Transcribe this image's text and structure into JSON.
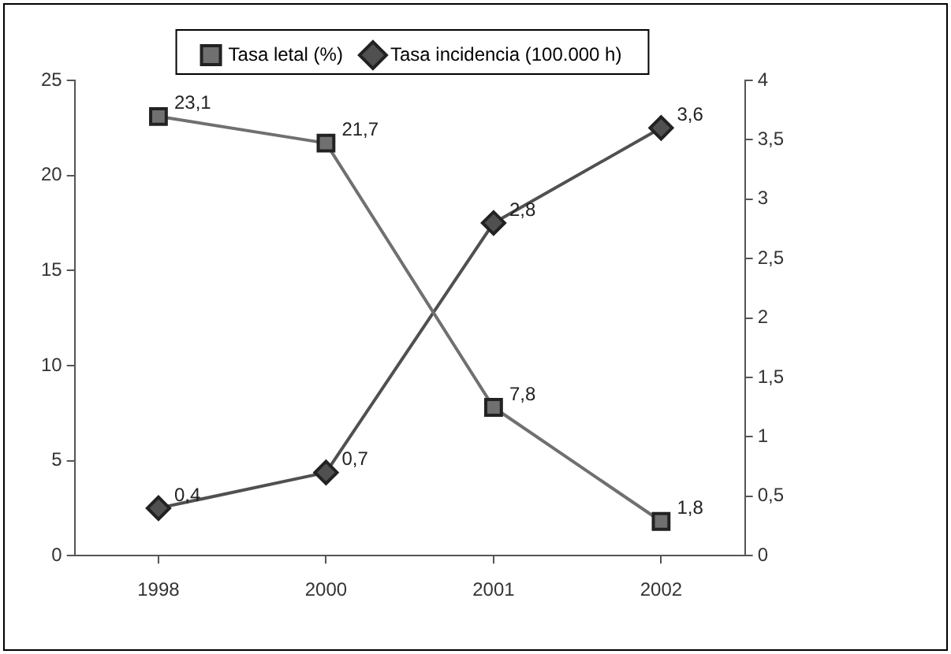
{
  "chart_data": {
    "type": "line",
    "categories": [
      "1998",
      "2000",
      "2001",
      "2002"
    ],
    "series": [
      {
        "name": "Tasa letal (%)",
        "color": "#707070",
        "marker": "square",
        "values": [
          23.1,
          21.7,
          7.8,
          1.8
        ],
        "value_labels": [
          "23,1",
          "21,7",
          "7,8",
          "1,8"
        ]
      },
      {
        "name": "Tasa incidencia (100.000 h)",
        "color": "#505050",
        "marker": "diamond",
        "axis": "y2",
        "values": [
          0.4,
          0.7,
          2.8,
          3.6
        ],
        "value_labels": [
          "0,4",
          "0,7",
          "2,8",
          "3,6"
        ]
      }
    ],
    "ylim": [
      0,
      25
    ],
    "yticks": [
      0,
      5,
      10,
      15,
      20,
      25
    ],
    "y2lim": [
      0,
      4
    ],
    "y2ticks": [
      0,
      {
        "value": 0.5,
        "label": "0,5"
      },
      1,
      {
        "value": 1.5,
        "label": "1,5"
      },
      2,
      {
        "value": 2.5,
        "label": "2,5"
      },
      3,
      {
        "value": 3.5,
        "label": "3,5"
      },
      4
    ],
    "legend": "top",
    "line_style": "solid"
  }
}
